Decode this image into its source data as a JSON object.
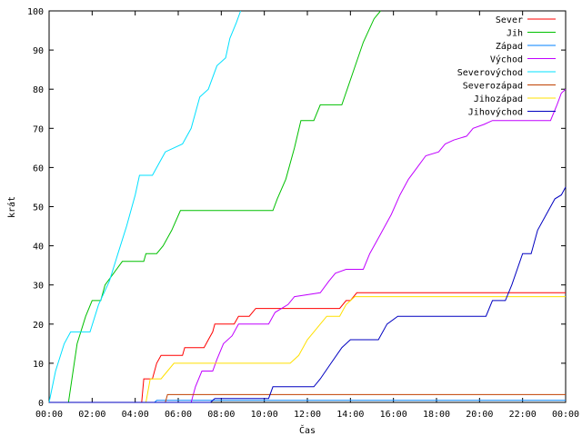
{
  "chart_data": {
    "type": "line",
    "title": "",
    "xlabel": "Čas",
    "ylabel": "krát",
    "xlim": [
      0,
      24
    ],
    "ylim": [
      0,
      100
    ],
    "x_ticks": [
      {
        "value": 0,
        "label": "00:00"
      },
      {
        "value": 2,
        "label": "02:00"
      },
      {
        "value": 4,
        "label": "04:00"
      },
      {
        "value": 6,
        "label": "06:00"
      },
      {
        "value": 8,
        "label": "08:00"
      },
      {
        "value": 10,
        "label": "10:00"
      },
      {
        "value": 12,
        "label": "12:00"
      },
      {
        "value": 14,
        "label": "14:00"
      },
      {
        "value": 16,
        "label": "16:00"
      },
      {
        "value": 18,
        "label": "18:00"
      },
      {
        "value": 20,
        "label": "20:00"
      },
      {
        "value": 22,
        "label": "22:00"
      },
      {
        "value": 24,
        "label": "00:00"
      }
    ],
    "y_ticks": [
      0,
      10,
      20,
      30,
      40,
      50,
      60,
      70,
      80,
      90,
      100
    ],
    "grid": false,
    "legend_position": "top-right",
    "series": [
      {
        "name": "Sever",
        "color": "#ff0000",
        "points": [
          [
            0,
            0
          ],
          [
            4.3,
            0
          ],
          [
            4.4,
            6
          ],
          [
            4.8,
            6
          ],
          [
            5.0,
            10
          ],
          [
            5.2,
            12
          ],
          [
            6.2,
            12
          ],
          [
            6.3,
            14
          ],
          [
            7.2,
            14
          ],
          [
            7.4,
            16
          ],
          [
            7.6,
            18
          ],
          [
            7.7,
            20
          ],
          [
            8.6,
            20
          ],
          [
            8.8,
            22
          ],
          [
            9.3,
            22
          ],
          [
            9.6,
            24
          ],
          [
            13.5,
            24
          ],
          [
            13.8,
            26
          ],
          [
            14.0,
            26
          ],
          [
            14.3,
            28
          ],
          [
            24,
            28
          ]
        ]
      },
      {
        "name": "Jih",
        "color": "#00c000",
        "points": [
          [
            0,
            0
          ],
          [
            0.9,
            0
          ],
          [
            1.3,
            15
          ],
          [
            1.7,
            22
          ],
          [
            2.0,
            26
          ],
          [
            2.4,
            26
          ],
          [
            2.6,
            30
          ],
          [
            3.0,
            33
          ],
          [
            3.4,
            36
          ],
          [
            4.4,
            36
          ],
          [
            4.5,
            38
          ],
          [
            5.0,
            38
          ],
          [
            5.3,
            40
          ],
          [
            5.7,
            44
          ],
          [
            6.1,
            49
          ],
          [
            10.4,
            49
          ],
          [
            10.6,
            52
          ],
          [
            11.0,
            57
          ],
          [
            11.4,
            65
          ],
          [
            11.7,
            72
          ],
          [
            12.3,
            72
          ],
          [
            12.6,
            76
          ],
          [
            13.6,
            76
          ],
          [
            14.1,
            84
          ],
          [
            14.6,
            92
          ],
          [
            15.1,
            98
          ],
          [
            15.4,
            100
          ]
        ]
      },
      {
        "name": "Západ",
        "color": "#0080ff",
        "points": [
          [
            0,
            0
          ],
          [
            4.9,
            0
          ],
          [
            5.0,
            0.5
          ],
          [
            24,
            0.5
          ]
        ]
      },
      {
        "name": "Východ",
        "color": "#c000ff",
        "points": [
          [
            0,
            0
          ],
          [
            6.6,
            0
          ],
          [
            6.8,
            4
          ],
          [
            7.1,
            8
          ],
          [
            7.6,
            8
          ],
          [
            7.8,
            11
          ],
          [
            8.1,
            15
          ],
          [
            8.5,
            17
          ],
          [
            8.8,
            20
          ],
          [
            10.2,
            20
          ],
          [
            10.5,
            23
          ],
          [
            11.1,
            25
          ],
          [
            11.4,
            27
          ],
          [
            12.6,
            28
          ],
          [
            13.0,
            31
          ],
          [
            13.3,
            33
          ],
          [
            13.8,
            34
          ],
          [
            14.6,
            34
          ],
          [
            14.9,
            38
          ],
          [
            15.4,
            43
          ],
          [
            15.9,
            48
          ],
          [
            16.3,
            53
          ],
          [
            16.7,
            57
          ],
          [
            17.1,
            60
          ],
          [
            17.5,
            63
          ],
          [
            18.1,
            64
          ],
          [
            18.4,
            66
          ],
          [
            18.8,
            67
          ],
          [
            19.4,
            68
          ],
          [
            19.7,
            70
          ],
          [
            20.2,
            71
          ],
          [
            20.6,
            72
          ],
          [
            23.3,
            72
          ],
          [
            23.6,
            76
          ],
          [
            23.8,
            79
          ],
          [
            24,
            80
          ]
        ]
      },
      {
        "name": "Severovýchod",
        "color": "#00e0ff",
        "points": [
          [
            0,
            0
          ],
          [
            0.3,
            8
          ],
          [
            0.7,
            15
          ],
          [
            1.0,
            18
          ],
          [
            1.9,
            18
          ],
          [
            2.3,
            25
          ],
          [
            2.8,
            31
          ],
          [
            3.2,
            38
          ],
          [
            3.6,
            45
          ],
          [
            4.0,
            53
          ],
          [
            4.2,
            58
          ],
          [
            4.8,
            58
          ],
          [
            5.1,
            61
          ],
          [
            5.4,
            64
          ],
          [
            5.8,
            65
          ],
          [
            6.2,
            66
          ],
          [
            6.6,
            70
          ],
          [
            7.0,
            78
          ],
          [
            7.4,
            80
          ],
          [
            7.8,
            86
          ],
          [
            8.2,
            88
          ],
          [
            8.4,
            93
          ],
          [
            8.7,
            97
          ],
          [
            8.9,
            100
          ]
        ]
      },
      {
        "name": "Severozápad",
        "color": "#c04000",
        "points": [
          [
            0,
            0
          ],
          [
            5.4,
            0
          ],
          [
            5.5,
            2
          ],
          [
            24,
            2
          ]
        ]
      },
      {
        "name": "Jihozápad",
        "color": "#ffe000",
        "points": [
          [
            0,
            0
          ],
          [
            4.5,
            0
          ],
          [
            4.7,
            6
          ],
          [
            5.2,
            6
          ],
          [
            5.5,
            8
          ],
          [
            5.8,
            10
          ],
          [
            11.2,
            10
          ],
          [
            11.6,
            12
          ],
          [
            12.0,
            16
          ],
          [
            12.3,
            18
          ],
          [
            12.6,
            20
          ],
          [
            12.9,
            22
          ],
          [
            13.5,
            22
          ],
          [
            13.8,
            25
          ],
          [
            14.2,
            27
          ],
          [
            24,
            27
          ]
        ]
      },
      {
        "name": "Jihovýchod",
        "color": "#0000c0",
        "points": [
          [
            0,
            0
          ],
          [
            7.5,
            0
          ],
          [
            7.7,
            1
          ],
          [
            10.2,
            1
          ],
          [
            10.4,
            4
          ],
          [
            12.3,
            4
          ],
          [
            12.6,
            6
          ],
          [
            13.1,
            10
          ],
          [
            13.6,
            14
          ],
          [
            14.0,
            16
          ],
          [
            15.3,
            16
          ],
          [
            15.7,
            20
          ],
          [
            16.2,
            22
          ],
          [
            20.3,
            22
          ],
          [
            20.6,
            26
          ],
          [
            21.2,
            26
          ],
          [
            21.5,
            30
          ],
          [
            22.0,
            38
          ],
          [
            22.4,
            38
          ],
          [
            22.7,
            44
          ],
          [
            23.1,
            48
          ],
          [
            23.5,
            52
          ],
          [
            23.8,
            53
          ],
          [
            24,
            55
          ]
        ]
      }
    ]
  }
}
